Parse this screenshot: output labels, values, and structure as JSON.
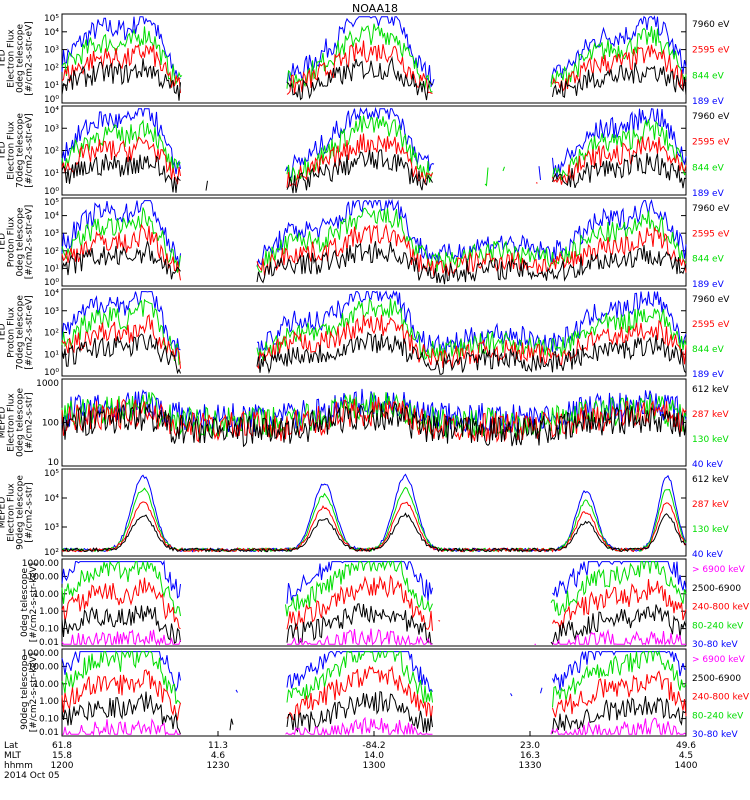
{
  "title": "NOAA18",
  "colors": {
    "c1": "#000000",
    "c2": "#ff0000",
    "c3": "#00dd00",
    "c4": "#0000ff",
    "c5": "#ff00ff"
  },
  "x_axis": {
    "ticks": [
      {
        "lat": "61.8",
        "mlt": "15.8",
        "hhmm": "1200"
      },
      {
        "lat": "11.3",
        "mlt": "4.6",
        "hhmm": "1230"
      },
      {
        "lat": "-84.2",
        "mlt": "14.0",
        "hhmm": "1300"
      },
      {
        "lat": "23.0",
        "mlt": "16.3",
        "hhmm": "1330"
      },
      {
        "lat": "49.6",
        "mlt": "4.5",
        "hhmm": "1400"
      }
    ],
    "row_labels": [
      "Lat",
      "MLT",
      "hhmm"
    ],
    "date": "2014 Oct 05"
  },
  "chart_data": [
    {
      "type": "line",
      "ylabel": [
        "TED",
        "Electron Flux",
        "0deg telescope",
        "[#/cm2-s-str-eV]"
      ],
      "yticks": [
        "10⁰",
        "10¹",
        "10²",
        "10³",
        "10⁴",
        "10⁵"
      ],
      "ylim": [
        1,
        100000
      ],
      "legend": [
        {
          "label": "7960 eV",
          "color": "c1"
        },
        {
          "label": "2595 eV",
          "color": "c2"
        },
        {
          "label": "844 eV",
          "color": "c3"
        },
        {
          "label": "189 eV",
          "color": "c4"
        }
      ]
    },
    {
      "type": "line",
      "ylabel": [
        "TED",
        "Electron Flux",
        "70deg telescope",
        "[#/cm2-s-str-eV]"
      ],
      "yticks": [
        "10⁰",
        "10¹",
        "10²",
        "10³",
        "10⁴"
      ],
      "ylim": [
        1,
        10000
      ],
      "legend": [
        {
          "label": "7960 eV",
          "color": "c1"
        },
        {
          "label": "2595 eV",
          "color": "c2"
        },
        {
          "label": "844 eV",
          "color": "c3"
        },
        {
          "label": "189 eV",
          "color": "c4"
        }
      ]
    },
    {
      "type": "line",
      "ylabel": [
        "TED",
        "Proton Flux",
        "0deg telescope",
        "[#/cm2-s-str-eV]"
      ],
      "yticks": [
        "10⁰",
        "10¹",
        "10²",
        "10³",
        "10⁴",
        "10⁵"
      ],
      "ylim": [
        1,
        100000
      ],
      "legend": [
        {
          "label": "7960 eV",
          "color": "c1"
        },
        {
          "label": "2595 eV",
          "color": "c2"
        },
        {
          "label": "844 eV",
          "color": "c3"
        },
        {
          "label": "189 eV",
          "color": "c4"
        }
      ]
    },
    {
      "type": "line",
      "ylabel": [
        "TED",
        "Proton Flux",
        "70deg telescope",
        "[#/cm2-s-str-eV]"
      ],
      "yticks": [
        "10⁰",
        "10¹",
        "10²",
        "10³",
        "10⁴"
      ],
      "ylim": [
        1,
        10000
      ],
      "legend": [
        {
          "label": "7960 eV",
          "color": "c1"
        },
        {
          "label": "2595 eV",
          "color": "c2"
        },
        {
          "label": "844 eV",
          "color": "c3"
        },
        {
          "label": "189 eV",
          "color": "c4"
        }
      ]
    },
    {
      "type": "line",
      "ylabel": [
        "MEPED",
        "Electron Flux",
        "0deg telescope",
        "[#/cm2-s-str]"
      ],
      "yticks": [
        "10",
        "100",
        "1000"
      ],
      "ylim": [
        10,
        1000
      ],
      "legend": [
        {
          "label": "612 keV",
          "color": "c1"
        },
        {
          "label": "287 keV",
          "color": "c2"
        },
        {
          "label": "130 keV",
          "color": "c3"
        },
        {
          "label": "40 keV",
          "color": "c4"
        }
      ]
    },
    {
      "type": "line",
      "ylabel": [
        "MEPED",
        "Electron Flux",
        "90deg telescope",
        "[#/cm2-s-str]"
      ],
      "yticks": [
        "10²",
        "10³",
        "10⁴",
        "10⁵"
      ],
      "ylim": [
        100,
        100000
      ],
      "legend": [
        {
          "label": "612 keV",
          "color": "c1"
        },
        {
          "label": "287 keV",
          "color": "c2"
        },
        {
          "label": "130 keV",
          "color": "c3"
        },
        {
          "label": "40 keV",
          "color": "c4"
        }
      ]
    },
    {
      "type": "line",
      "ylabel": [
        "",
        "0deg telescope",
        "[#/cm2-s-str-keV]"
      ],
      "yticks": [
        "0.01",
        "0.10",
        "1.00",
        "10.00",
        "100.00",
        "1000.00"
      ],
      "ylim": [
        0.01,
        1000
      ],
      "legend": [
        {
          "label": "> 6900 keV",
          "color": "c5"
        },
        {
          "label": "2500-6900",
          "color": "c1"
        },
        {
          "label": "240-800 keV",
          "color": "c2"
        },
        {
          "label": "80-240 keV",
          "color": "c3"
        },
        {
          "label": "30-80 keV",
          "color": "c4"
        }
      ]
    },
    {
      "type": "line",
      "ylabel": [
        "",
        "90deg telescope",
        "[#/cm2-s-str-keV]"
      ],
      "yticks": [
        "0.01",
        "0.10",
        "1.00",
        "10.00",
        "100.00",
        "1000.00"
      ],
      "ylim": [
        0.01,
        1000
      ],
      "legend": [
        {
          "label": "> 6900 keV",
          "color": "c5"
        },
        {
          "label": "2500-6900",
          "color": "c1"
        },
        {
          "label": "240-800 keV",
          "color": "c2"
        },
        {
          "label": "80-240 keV",
          "color": "c3"
        },
        {
          "label": "30-80 keV",
          "color": "c4"
        }
      ]
    }
  ]
}
